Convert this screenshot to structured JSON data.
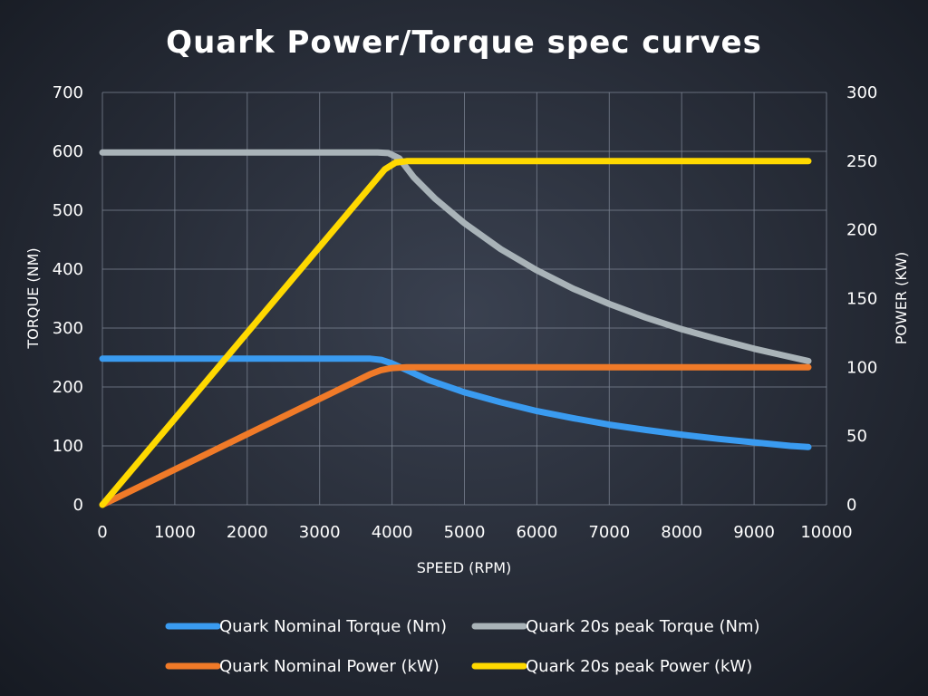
{
  "chart_data": {
    "type": "line",
    "title": "Quark Power/Torque spec curves",
    "xlabel": "SPEED (RPM)",
    "ylabel": "TORQUE (NM)",
    "y2label": "POWER (KW)",
    "xlim": [
      0,
      10000
    ],
    "ylim": [
      0,
      700
    ],
    "y2lim": [
      0,
      300
    ],
    "xticks": [
      0,
      1000,
      2000,
      3000,
      4000,
      5000,
      6000,
      7000,
      8000,
      9000,
      10000
    ],
    "yticks": [
      0,
      100,
      200,
      300,
      400,
      500,
      600,
      700
    ],
    "y2ticks": [
      0,
      50,
      100,
      150,
      200,
      250,
      300
    ],
    "grid": true,
    "legend_position": "bottom",
    "series": [
      {
        "name": "Quark Nominal Torque (Nm)",
        "axis": "left",
        "color": "#3a9bf0",
        "x": [
          0,
          3500,
          3700,
          3850,
          4000,
          4500,
          5000,
          5500,
          6000,
          6500,
          7000,
          7500,
          8000,
          8500,
          9000,
          9500,
          9750
        ],
        "y": [
          248,
          248,
          248,
          246,
          240,
          212,
          191,
          174,
          159,
          147,
          136,
          127,
          119,
          112,
          106,
          100,
          98
        ]
      },
      {
        "name": "Quark 20s peak Torque (Nm)",
        "axis": "left",
        "color": "#a9b3b8",
        "x": [
          0,
          3800,
          3950,
          4100,
          4300,
          4600,
          5000,
          5500,
          6000,
          6500,
          7000,
          7500,
          8000,
          8500,
          9000,
          9500,
          9750
        ],
        "y": [
          598,
          598,
          597,
          588,
          556,
          519,
          478,
          434,
          398,
          367,
          341,
          318,
          298,
          281,
          265,
          251,
          244
        ]
      },
      {
        "name": "Quark Nominal Power (kW)",
        "axis": "right",
        "color": "#f07a28",
        "x": [
          0,
          3700,
          3850,
          4000,
          4200,
          9750
        ],
        "y": [
          0,
          95,
          98,
          99.5,
          100,
          100
        ]
      },
      {
        "name": "Quark 20s peak Power (kW)",
        "axis": "right",
        "color": "#ffd900",
        "x": [
          0,
          3900,
          4050,
          4200,
          9750
        ],
        "y": [
          0,
          244,
          249,
          250,
          250
        ]
      }
    ]
  }
}
